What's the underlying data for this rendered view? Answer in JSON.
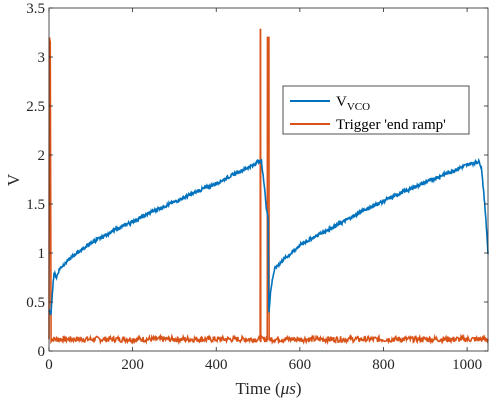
{
  "chart_data": {
    "type": "line",
    "xlabel": "Time (",
    "xlabel_unit": "μs",
    "xlabel_close": ")",
    "ylabel": "V",
    "xlim": [
      0,
      1050
    ],
    "ylim": [
      0,
      3.5
    ],
    "x_ticks": [
      0,
      200,
      400,
      600,
      800,
      1000
    ],
    "y_ticks": [
      0,
      0.5,
      1,
      1.5,
      2,
      2.5,
      3,
      3.5
    ],
    "x_tick_labels": [
      "0",
      "200",
      "400",
      "600",
      "800",
      "1000"
    ],
    "y_tick_labels": [
      "0",
      "0.5",
      "1",
      "1.5",
      "2",
      "2.5",
      "3",
      "3.5"
    ],
    "grid": false,
    "legend_position": "top-right",
    "series": [
      {
        "name": "V",
        "name_sub": "VCO",
        "color": "#0072BD",
        "points": [
          [
            0,
            0.4
          ],
          [
            5,
            0.38
          ],
          [
            8,
            0.6
          ],
          [
            12,
            0.8
          ],
          [
            18,
            0.75
          ],
          [
            25,
            0.84
          ],
          [
            40,
            0.9
          ],
          [
            60,
            0.98
          ],
          [
            80,
            1.04
          ],
          [
            100,
            1.1
          ],
          [
            130,
            1.17
          ],
          [
            160,
            1.24
          ],
          [
            200,
            1.32
          ],
          [
            250,
            1.43
          ],
          [
            300,
            1.52
          ],
          [
            350,
            1.62
          ],
          [
            400,
            1.71
          ],
          [
            450,
            1.82
          ],
          [
            490,
            1.9
          ],
          [
            500,
            1.94
          ],
          [
            505,
            1.92
          ],
          [
            508,
            1.96
          ],
          [
            510,
            1.85
          ],
          [
            515,
            1.7
          ],
          [
            520,
            1.45
          ],
          [
            524,
            1.35
          ],
          [
            526,
            0.4
          ],
          [
            530,
            0.6
          ],
          [
            535,
            0.75
          ],
          [
            540,
            0.84
          ],
          [
            560,
            0.93
          ],
          [
            580,
            1.0
          ],
          [
            600,
            1.08
          ],
          [
            650,
            1.2
          ],
          [
            700,
            1.31
          ],
          [
            750,
            1.43
          ],
          [
            800,
            1.53
          ],
          [
            850,
            1.63
          ],
          [
            900,
            1.72
          ],
          [
            950,
            1.81
          ],
          [
            1000,
            1.9
          ],
          [
            1025,
            1.93
          ],
          [
            1030,
            1.93
          ],
          [
            1035,
            1.85
          ],
          [
            1040,
            1.6
          ],
          [
            1045,
            1.35
          ],
          [
            1050,
            1.0
          ]
        ]
      },
      {
        "name": "Trigger 'end ramp'",
        "color": "#D95319",
        "baseline": 0.12,
        "points": [
          [
            0,
            0.12
          ],
          [
            1,
            3.2
          ],
          [
            3,
            3.15
          ],
          [
            5,
            0.12
          ],
          [
            505,
            0.12
          ],
          [
            505.5,
            3.28
          ],
          [
            506,
            3.28
          ],
          [
            506.5,
            0.12
          ],
          [
            522,
            0.12
          ],
          [
            522.5,
            3.2
          ],
          [
            526,
            3.2
          ],
          [
            526.5,
            0.12
          ],
          [
            1050,
            0.12
          ]
        ]
      }
    ]
  }
}
